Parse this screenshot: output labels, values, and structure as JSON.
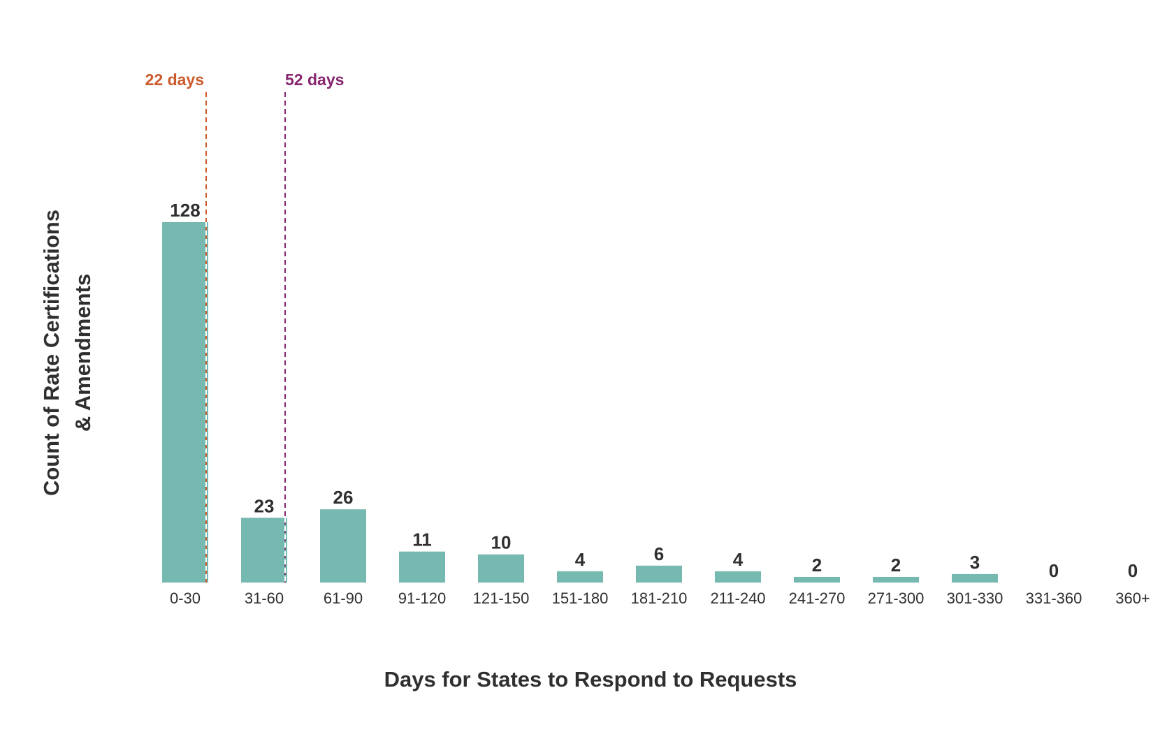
{
  "chart_data": {
    "type": "bar",
    "categories": [
      "0-30",
      "31-60",
      "61-90",
      "91-120",
      "121-150",
      "151-180",
      "181-210",
      "211-240",
      "241-270",
      "271-300",
      "301-330",
      "331-360",
      "360+"
    ],
    "values": [
      128,
      23,
      26,
      11,
      10,
      4,
      6,
      4,
      2,
      2,
      3,
      0,
      0
    ],
    "xlabel": "Days for States to Respond to Requests",
    "ylabel_lines": [
      "Count of Rate Certifications",
      "& Amendments"
    ],
    "ylim": [
      0,
      128
    ],
    "grid": false,
    "bar_color": "#76b9b0",
    "reference_lines": [
      {
        "x": 22,
        "label": "22 days",
        "color": "#cc5a2c"
      },
      {
        "x": 52,
        "label": "52 days",
        "color": "#86266f"
      }
    ]
  }
}
